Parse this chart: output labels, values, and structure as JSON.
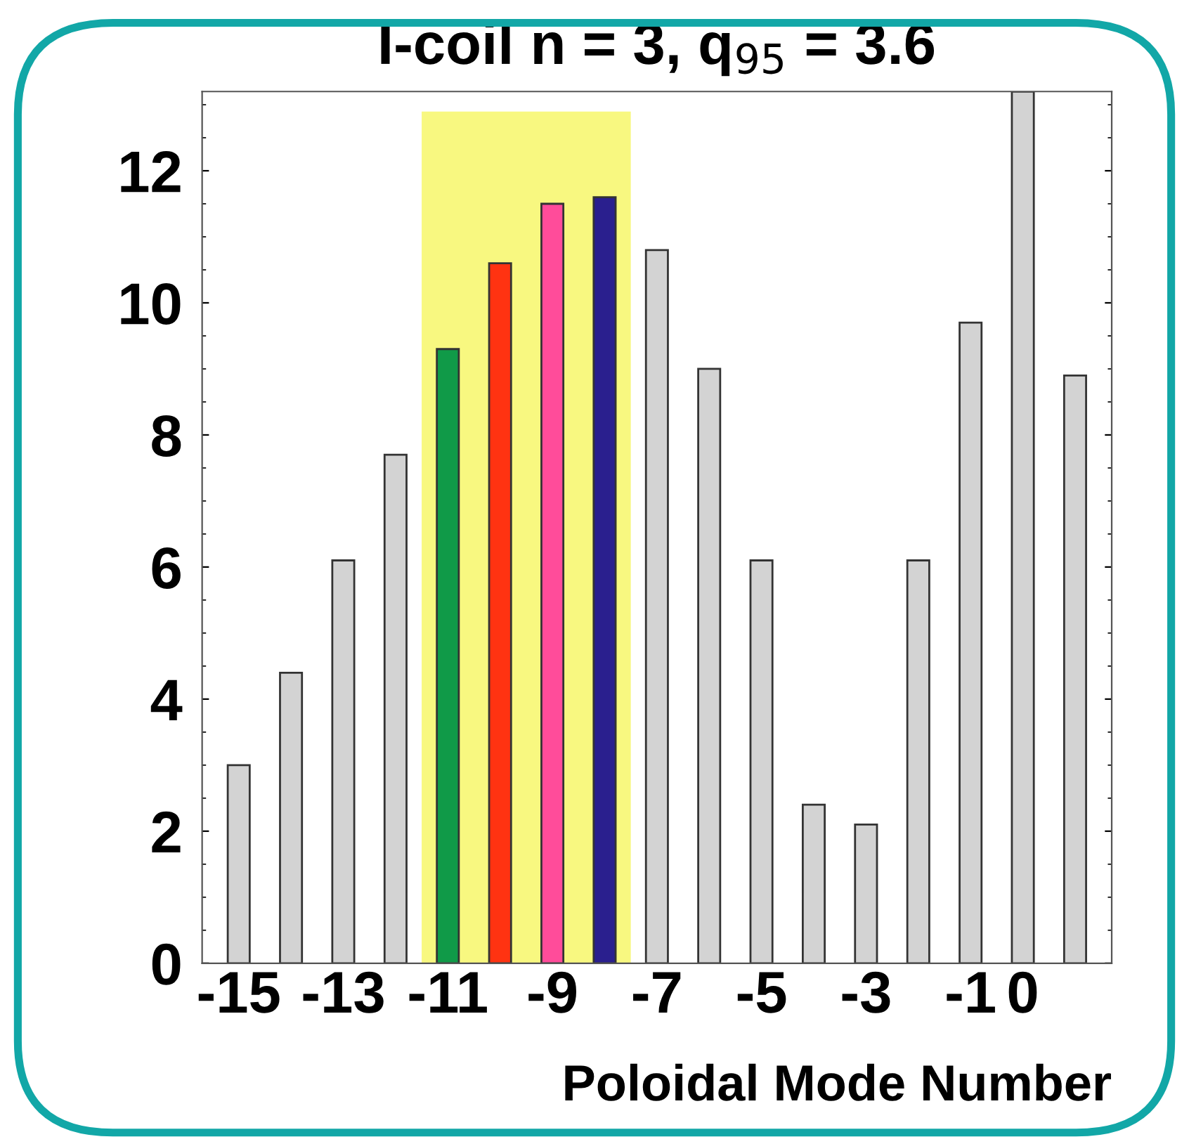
{
  "chart_data": {
    "type": "bar",
    "title": "I-coil n = 3, q$_{95}$ = 3.6",
    "xlabel": "Poloidal Mode Number",
    "x": [
      -15,
      -14,
      -13,
      -12,
      -11,
      -10,
      -9,
      -8,
      -7,
      -6,
      -5,
      -4,
      -3,
      -2,
      -1,
      0,
      1
    ],
    "values": [
      3.0,
      4.4,
      6.1,
      7.7,
      9.3,
      10.6,
      11.5,
      11.6,
      10.8,
      9.0,
      6.1,
      2.4,
      2.1,
      6.1,
      9.7,
      13.2,
      8.9
    ],
    "colors": [
      "#d3d3d3",
      "#d3d3d3",
      "#d3d3d3",
      "#d3d3d3",
      "#109a48",
      "#ff3311",
      "#ff4c9a",
      "#2a1f8e",
      "#d3d3d3",
      "#d3d3d3",
      "#d3d3d3",
      "#d3d3d3",
      "#d3d3d3",
      "#d3d3d3",
      "#d3d3d3",
      "#d3d3d3",
      "#d3d3d3"
    ],
    "xlim": [
      -15.7,
      1.7
    ],
    "xticks": [
      -15,
      -13,
      -11,
      -9,
      -7,
      -5,
      -3,
      -1,
      0
    ],
    "ylim": [
      0,
      13.2
    ],
    "yticks": [
      0,
      2,
      4,
      6,
      8,
      10,
      12
    ],
    "bands": [
      {
        "axis": "x",
        "from": -11.5,
        "to": -7.5,
        "color": "#f8f880"
      }
    ],
    "grid": false,
    "legend": false
  }
}
